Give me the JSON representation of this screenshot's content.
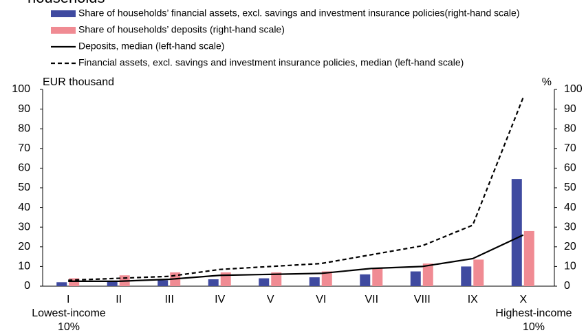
{
  "chart_data": {
    "type": "bar_line",
    "title": "households",
    "categories": [
      "I",
      "II",
      "III",
      "IV",
      "V",
      "VI",
      "VII",
      "VIII",
      "IX",
      "X"
    ],
    "annotations": [
      "Lowest-income",
      "10%",
      "Highest-income",
      "10%"
    ],
    "ylabel": "EUR thousand",
    "y2label": "%",
    "ylim": [
      0,
      100
    ],
    "yticks": [
      0,
      10,
      20,
      30,
      40,
      50,
      60,
      70,
      80,
      90,
      100
    ],
    "y2lim": [
      0,
      100
    ],
    "y2ticks": [
      0,
      10,
      20,
      30,
      40,
      50,
      60,
      70,
      80,
      90,
      100
    ],
    "series": [
      {
        "name": "Share of households’ financial assets, excl. savings and investment insurance policies(right-hand scale)",
        "kind": "bar",
        "axis": "y2",
        "color": "#3f4aa0",
        "values": [
          2,
          2.5,
          3,
          3.5,
          4,
          4.5,
          6,
          7.5,
          10,
          54.5
        ]
      },
      {
        "name": "Share of households’ deposits (right-hand scale)",
        "kind": "bar",
        "axis": "y2",
        "color": "#f08b93",
        "values": [
          4,
          5.5,
          7,
          7,
          7,
          7.5,
          9,
          11.5,
          13.5,
          28
        ]
      },
      {
        "name": "Deposits, median (left-hand scale)",
        "kind": "line",
        "axis": "y",
        "color": "#000000",
        "dashed": false,
        "values": [
          2.5,
          2.5,
          3.5,
          5.5,
          6,
          6.5,
          9,
          10,
          14,
          26
        ]
      },
      {
        "name": "Financial assets, excl. savings and investment insurance policies, median (left-hand scale)",
        "kind": "line",
        "axis": "y",
        "color": "#000000",
        "dashed": true,
        "values": [
          3,
          4,
          5,
          8.5,
          10,
          11.5,
          16,
          20.5,
          31,
          96
        ]
      }
    ]
  }
}
